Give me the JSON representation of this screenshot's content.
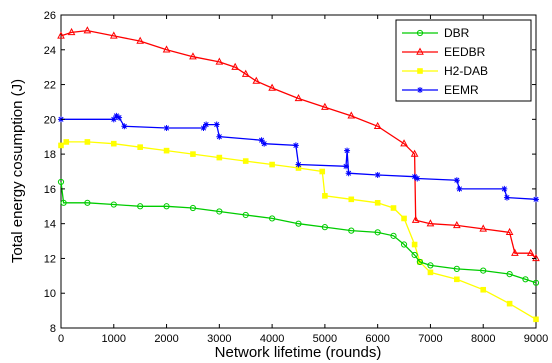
{
  "chart_data": {
    "type": "line",
    "title": "",
    "xlabel": "Network lifetime (rounds)",
    "ylabel": "Total energy cosumption (J)",
    "xlim": [
      0,
      9000
    ],
    "ylim": [
      8,
      26
    ],
    "xticks": [
      0,
      1000,
      2000,
      3000,
      4000,
      5000,
      6000,
      7000,
      8000,
      9000
    ],
    "yticks": [
      8,
      10,
      12,
      14,
      16,
      18,
      20,
      22,
      24,
      26
    ],
    "grid": false,
    "legend_position": "top-right",
    "series": [
      {
        "name": "DBR",
        "color": "#00cc00",
        "marker": "circle",
        "x": [
          0,
          50,
          500,
          1000,
          1500,
          2000,
          2500,
          3000,
          3500,
          4000,
          4500,
          5000,
          5500,
          6000,
          6300,
          6500,
          6700,
          6800,
          7000,
          7500,
          8000,
          8500,
          8800,
          9000
        ],
        "y": [
          16.4,
          15.2,
          15.2,
          15.1,
          15.0,
          15.0,
          14.9,
          14.7,
          14.5,
          14.3,
          14.0,
          13.8,
          13.6,
          13.5,
          13.3,
          12.8,
          12.2,
          11.8,
          11.6,
          11.4,
          11.3,
          11.1,
          10.8,
          10.6
        ]
      },
      {
        "name": "EEDBR",
        "color": "#ff0000",
        "marker": "triangle",
        "x": [
          0,
          200,
          500,
          1000,
          1500,
          2000,
          2500,
          3000,
          3300,
          3500,
          3700,
          4000,
          4500,
          5000,
          5500,
          6000,
          6500,
          6700,
          6720,
          7000,
          7500,
          8000,
          8500,
          8600,
          8900,
          9000
        ],
        "y": [
          24.8,
          25.0,
          25.1,
          24.8,
          24.5,
          24.0,
          23.6,
          23.3,
          23.0,
          22.6,
          22.2,
          21.8,
          21.2,
          20.7,
          20.2,
          19.6,
          18.6,
          18.0,
          14.2,
          14.0,
          13.9,
          13.7,
          13.5,
          12.3,
          12.3,
          12.0
        ]
      },
      {
        "name": "H2-DAB",
        "color": "#ffff00",
        "marker": "square",
        "x": [
          0,
          100,
          500,
          1000,
          1500,
          2000,
          2500,
          3000,
          3500,
          4000,
          4500,
          4950,
          5000,
          5500,
          6000,
          6300,
          6500,
          6700,
          6800,
          7000,
          7500,
          8000,
          8500,
          9000
        ],
        "y": [
          18.5,
          18.7,
          18.7,
          18.6,
          18.4,
          18.2,
          18.0,
          17.8,
          17.6,
          17.4,
          17.2,
          17.0,
          15.6,
          15.4,
          15.2,
          14.9,
          14.3,
          12.8,
          11.8,
          11.2,
          10.8,
          10.2,
          9.4,
          8.5
        ]
      },
      {
        "name": "EEMR",
        "color": "#0000ff",
        "marker": "star",
        "x": [
          0,
          1000,
          1050,
          1100,
          1200,
          2000,
          2700,
          2750,
          2950,
          3000,
          3800,
          3850,
          4450,
          4500,
          5400,
          5420,
          5450,
          6000,
          6700,
          6750,
          7500,
          7550,
          8400,
          8450,
          9000
        ],
        "y": [
          20.0,
          20.0,
          20.2,
          20.1,
          19.6,
          19.5,
          19.5,
          19.7,
          19.7,
          19.0,
          18.8,
          18.6,
          18.5,
          17.4,
          17.3,
          18.2,
          16.9,
          16.8,
          16.7,
          16.6,
          16.5,
          16.0,
          16.0,
          15.5,
          15.4
        ]
      }
    ]
  }
}
